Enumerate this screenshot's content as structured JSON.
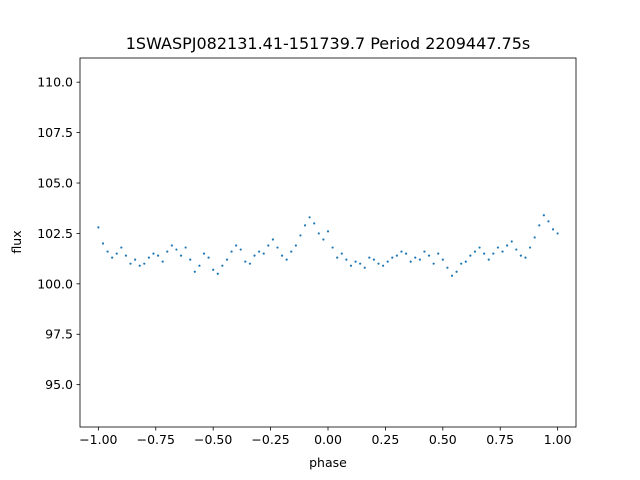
{
  "chart_data": {
    "type": "scatter",
    "title": "1SWASPJ082131.41-151739.7 Period 2209447.75s",
    "xlabel": "phase",
    "ylabel": "flux",
    "xlim": [
      -1.08,
      1.08
    ],
    "ylim": [
      92.9,
      111.2
    ],
    "x_ticks": [
      -1.0,
      -0.75,
      -0.5,
      -0.25,
      0.0,
      0.25,
      0.5,
      0.75,
      1.0
    ],
    "x_tick_labels": [
      "−1.00",
      "−0.75",
      "−0.50",
      "−0.25",
      "0.00",
      "0.25",
      "0.50",
      "0.75",
      "1.00"
    ],
    "y_ticks": [
      95.0,
      97.5,
      100.0,
      102.5,
      105.0,
      107.5,
      110.0
    ],
    "y_tick_labels": [
      "95.0",
      "97.5",
      "100.0",
      "102.5",
      "105.0",
      "107.5",
      "110.0"
    ],
    "grid": false,
    "point_color": "#1f77b4",
    "series": [
      {
        "x": [
          -1.0,
          -0.98,
          -0.96,
          -0.94,
          -0.92,
          -0.9,
          -0.88,
          -0.86,
          -0.84,
          -0.82,
          -0.8,
          -0.78,
          -0.76,
          -0.74,
          -0.72,
          -0.7,
          -0.68,
          -0.66,
          -0.64,
          -0.62,
          -0.6,
          -0.58,
          -0.56,
          -0.54,
          -0.52,
          -0.5,
          -0.48,
          -0.46,
          -0.44,
          -0.42,
          -0.4,
          -0.38,
          -0.36,
          -0.34,
          -0.32,
          -0.3,
          -0.28,
          -0.26,
          -0.24,
          -0.22,
          -0.2,
          -0.18,
          -0.16,
          -0.14,
          -0.12,
          -0.1,
          -0.08,
          -0.06,
          -0.04,
          -0.02,
          0.0,
          0.02,
          0.04,
          0.06,
          0.08,
          0.1,
          0.12,
          0.14,
          0.16,
          0.18,
          0.2,
          0.22,
          0.24,
          0.26,
          0.28,
          0.3,
          0.32,
          0.34,
          0.36,
          0.38,
          0.4,
          0.42,
          0.44,
          0.46,
          0.48,
          0.5,
          0.52,
          0.54,
          0.56,
          0.58,
          0.6,
          0.62,
          0.64,
          0.66,
          0.68,
          0.7,
          0.72,
          0.74,
          0.76,
          0.78,
          0.8,
          0.82,
          0.84,
          0.86,
          0.88,
          0.9,
          0.92,
          0.94,
          0.96,
          0.98,
          1.0
        ],
        "y": [
          102.8,
          102.0,
          101.6,
          101.3,
          101.5,
          101.8,
          101.4,
          101.0,
          101.2,
          100.9,
          101.0,
          101.3,
          101.5,
          101.4,
          101.1,
          101.6,
          101.9,
          101.7,
          101.4,
          101.8,
          101.2,
          100.6,
          100.9,
          101.5,
          101.3,
          100.7,
          100.5,
          100.9,
          101.2,
          101.6,
          101.9,
          101.7,
          101.1,
          101.0,
          101.4,
          101.6,
          101.5,
          101.9,
          102.2,
          101.8,
          101.4,
          101.2,
          101.6,
          101.9,
          102.4,
          102.9,
          103.3,
          103.0,
          102.5,
          102.2,
          102.6,
          101.8,
          101.3,
          101.5,
          101.2,
          100.9,
          101.1,
          101.0,
          100.8,
          101.3,
          101.2,
          101.0,
          100.9,
          101.1,
          101.3,
          101.4,
          101.6,
          101.5,
          101.1,
          101.3,
          101.2,
          101.6,
          101.4,
          101.0,
          101.5,
          101.2,
          100.8,
          100.4,
          100.6,
          101.0,
          101.1,
          101.4,
          101.6,
          101.8,
          101.5,
          101.2,
          101.5,
          101.8,
          101.6,
          101.9,
          102.1,
          101.7,
          101.4,
          101.3,
          101.8,
          102.3,
          102.9,
          103.4,
          103.1,
          102.7,
          102.5
        ]
      }
    ]
  }
}
